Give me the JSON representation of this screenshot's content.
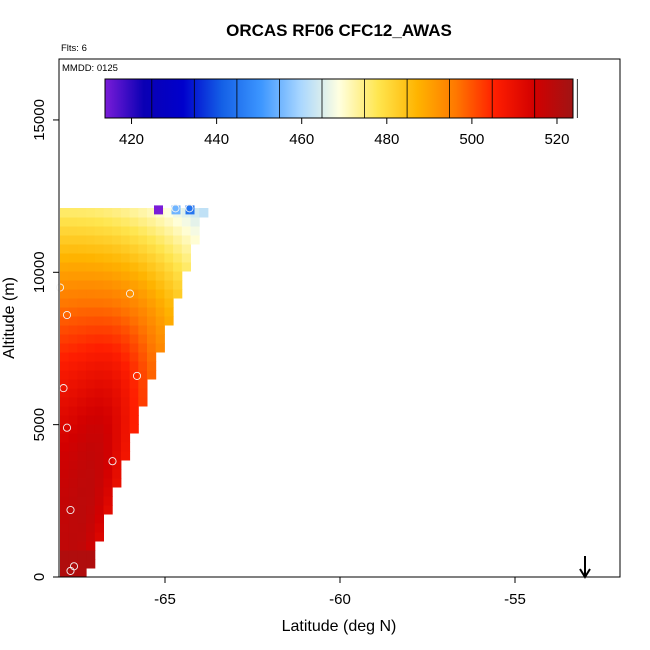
{
  "chart_data": {
    "type": "heatmap",
    "title": "ORCAS RF06 CFC12_AWAS",
    "flights_label": "Flts: 6",
    "mmdd_label": "MMDD: 0125",
    "xlabel": "Latitude (deg N)",
    "ylabel": "Altitude (m)",
    "xlim": [
      -68,
      -52
    ],
    "ylim": [
      0,
      17000
    ],
    "x_ticks": [
      -65,
      -60,
      -55
    ],
    "x_tick_labels": [
      "-65",
      "-60",
      "-55"
    ],
    "y_ticks": [
      0,
      5000,
      10000,
      15000
    ],
    "y_tick_labels": [
      "0",
      "5000",
      "10000",
      "15000"
    ],
    "colorbar": {
      "min": 414,
      "max": 524,
      "ticks": [
        420,
        440,
        460,
        480,
        500,
        520
      ],
      "tick_labels": [
        "420",
        "440",
        "460",
        "480",
        "500",
        "520"
      ],
      "colors": [
        "#7a1cd8",
        "#0a00b4",
        "#0000cc",
        "#1460e6",
        "#3c96ff",
        "#a8d6ff",
        "#ffffe0",
        "#ffe650",
        "#ffb400",
        "#ff7800",
        "#ff1e00",
        "#d20000",
        "#a01414"
      ]
    },
    "field_summary": {
      "description_values": "values near ground ~520, 500-510 at mid altitudes near -67.5, ~480 near 11500 m",
      "top_row_altitude": 12000,
      "top_row_points": [
        {
          "lat": -65.2,
          "value": 414
        },
        {
          "lat": -64.7,
          "value": 455
        },
        {
          "lat": -64.3,
          "value": 445
        }
      ]
    },
    "samples": [
      {
        "lat": -67.7,
        "alt": 200,
        "value": 520
      },
      {
        "lat": -67.6,
        "alt": 350,
        "value": 515
      },
      {
        "lat": -67.7,
        "alt": 2200,
        "value": 510
      },
      {
        "lat": -66.5,
        "alt": 3800,
        "value": 508
      },
      {
        "lat": -67.8,
        "alt": 4900,
        "value": 505
      },
      {
        "lat": -67.9,
        "alt": 6200,
        "value": 503
      },
      {
        "lat": -65.8,
        "alt": 6600,
        "value": 505
      },
      {
        "lat": -67.8,
        "alt": 8600,
        "value": 500
      },
      {
        "lat": -66.0,
        "alt": 9300,
        "value": 495
      },
      {
        "lat": -68.0,
        "alt": 9500,
        "value": 490
      },
      {
        "lat": -64.7,
        "alt": 12100,
        "value": 455
      },
      {
        "lat": -64.3,
        "alt": 12100,
        "value": 445
      }
    ],
    "arrow": {
      "lat": -53.0,
      "alt": 0
    }
  }
}
